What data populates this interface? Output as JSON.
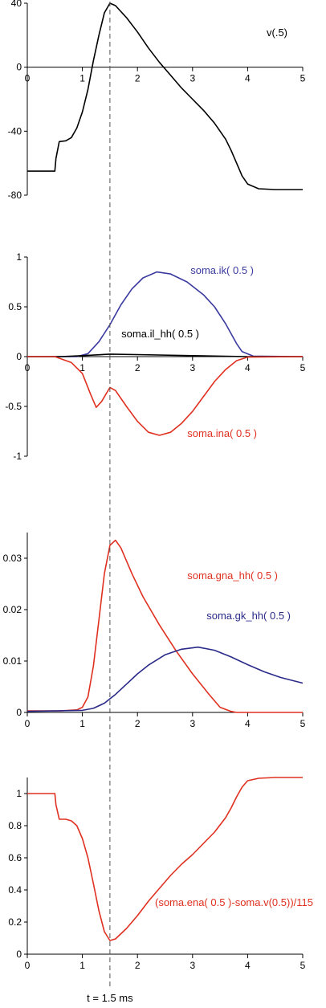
{
  "cursor_label": "t = 1.5 ms",
  "cursor_t": 1.5,
  "chart_data": [
    {
      "type": "line",
      "xlim": [
        0,
        5
      ],
      "ylim": [
        -80,
        40
      ],
      "x_ticks": [
        0,
        1,
        2,
        3,
        4,
        5
      ],
      "y_ticks": [
        40,
        0,
        -40,
        -80
      ],
      "series": [
        {
          "name": "v(.5)",
          "color": "#000000",
          "points": [
            [
              0,
              -65
            ],
            [
              0.5,
              -65
            ],
            [
              0.52,
              -57
            ],
            [
              0.58,
              -46.5
            ],
            [
              0.7,
              -46
            ],
            [
              0.8,
              -44
            ],
            [
              0.9,
              -38
            ],
            [
              1.0,
              -28
            ],
            [
              1.1,
              -14
            ],
            [
              1.2,
              4
            ],
            [
              1.3,
              20
            ],
            [
              1.4,
              34
            ],
            [
              1.5,
              40
            ],
            [
              1.6,
              38.5
            ],
            [
              1.8,
              31
            ],
            [
              2.0,
              22
            ],
            [
              2.2,
              12
            ],
            [
              2.4,
              3
            ],
            [
              2.6,
              -5
            ],
            [
              2.8,
              -13
            ],
            [
              3.0,
              -20
            ],
            [
              3.2,
              -27
            ],
            [
              3.4,
              -35
            ],
            [
              3.6,
              -45
            ],
            [
              3.7,
              -52
            ],
            [
              3.8,
              -60
            ],
            [
              3.9,
              -68
            ],
            [
              4.0,
              -73
            ],
            [
              4.2,
              -76
            ],
            [
              4.5,
              -76.5
            ],
            [
              5,
              -76.5
            ]
          ]
        }
      ]
    },
    {
      "type": "line",
      "xlim": [
        0,
        5
      ],
      "ylim": [
        -1,
        1
      ],
      "x_ticks": [
        0,
        1,
        2,
        3,
        4,
        5
      ],
      "y_ticks": [
        1,
        0.5,
        0,
        -0.5,
        -1
      ],
      "series": [
        {
          "name": "soma.ik( 0.5 )",
          "color": "#3a3aa0",
          "points": [
            [
              0,
              0
            ],
            [
              0.9,
              0
            ],
            [
              1.1,
              0.03
            ],
            [
              1.3,
              0.15
            ],
            [
              1.5,
              0.32
            ],
            [
              1.7,
              0.52
            ],
            [
              1.9,
              0.68
            ],
            [
              2.1,
              0.79
            ],
            [
              2.35,
              0.85
            ],
            [
              2.6,
              0.83
            ],
            [
              2.9,
              0.75
            ],
            [
              3.2,
              0.62
            ],
            [
              3.4,
              0.5
            ],
            [
              3.6,
              0.33
            ],
            [
              3.8,
              0.13
            ],
            [
              3.9,
              0.05
            ],
            [
              4.1,
              0.005
            ],
            [
              5,
              0
            ]
          ]
        },
        {
          "name": "soma.il_hh( 0.5 )",
          "color": "#000000",
          "points": [
            [
              0,
              0.0
            ],
            [
              0.6,
              0.0
            ],
            [
              1.0,
              0.01
            ],
            [
              1.5,
              0.025
            ],
            [
              2.0,
              0.02
            ],
            [
              3.0,
              0.01
            ],
            [
              4.0,
              0.0
            ],
            [
              5,
              0.0
            ]
          ]
        },
        {
          "name": "soma.ina( 0.5 )",
          "color": "#e03020",
          "points": [
            [
              0,
              0
            ],
            [
              0.5,
              0
            ],
            [
              0.6,
              -0.02
            ],
            [
              0.8,
              -0.06
            ],
            [
              1.0,
              -0.17
            ],
            [
              1.15,
              -0.38
            ],
            [
              1.25,
              -0.51
            ],
            [
              1.35,
              -0.45
            ],
            [
              1.5,
              -0.31
            ],
            [
              1.6,
              -0.34
            ],
            [
              1.8,
              -0.5
            ],
            [
              2.0,
              -0.65
            ],
            [
              2.2,
              -0.76
            ],
            [
              2.4,
              -0.79
            ],
            [
              2.6,
              -0.76
            ],
            [
              2.8,
              -0.67
            ],
            [
              3.0,
              -0.55
            ],
            [
              3.2,
              -0.4
            ],
            [
              3.4,
              -0.25
            ],
            [
              3.6,
              -0.13
            ],
            [
              3.8,
              -0.04
            ],
            [
              4.0,
              -0.005
            ],
            [
              5,
              0
            ]
          ]
        }
      ]
    },
    {
      "type": "line",
      "xlim": [
        0,
        5
      ],
      "ylim": [
        0,
        0.035
      ],
      "x_ticks": [
        0,
        1,
        2,
        3,
        4,
        5
      ],
      "y_ticks": [
        0.03,
        0.02,
        0.01,
        0
      ],
      "series": [
        {
          "name": "soma.gna_hh( 0.5 )",
          "color": "#e03020",
          "points": [
            [
              0,
              0.0003
            ],
            [
              0.6,
              0.0003
            ],
            [
              0.9,
              0.0005
            ],
            [
              1.0,
              0.001
            ],
            [
              1.1,
              0.003
            ],
            [
              1.2,
              0.009
            ],
            [
              1.3,
              0.018
            ],
            [
              1.4,
              0.027
            ],
            [
              1.5,
              0.0325
            ],
            [
              1.6,
              0.0335
            ],
            [
              1.7,
              0.032
            ],
            [
              1.9,
              0.027
            ],
            [
              2.1,
              0.0225
            ],
            [
              2.4,
              0.017
            ],
            [
              2.7,
              0.012
            ],
            [
              3.0,
              0.0075
            ],
            [
              3.3,
              0.0035
            ],
            [
              3.5,
              0.001
            ],
            [
              3.7,
              0.0002
            ],
            [
              3.8,
              0.0
            ],
            [
              5,
              0.0
            ]
          ]
        },
        {
          "name": "soma.gk_hh( 0.5 )",
          "color": "#2a2a8a",
          "points": [
            [
              0,
              0.0002
            ],
            [
              1.0,
              0.0004
            ],
            [
              1.2,
              0.0008
            ],
            [
              1.4,
              0.0018
            ],
            [
              1.6,
              0.0035
            ],
            [
              1.8,
              0.0055
            ],
            [
              2.0,
              0.0075
            ],
            [
              2.2,
              0.0092
            ],
            [
              2.5,
              0.0112
            ],
            [
              2.8,
              0.0123
            ],
            [
              3.1,
              0.0127
            ],
            [
              3.4,
              0.0121
            ],
            [
              3.7,
              0.0108
            ],
            [
              4.0,
              0.0093
            ],
            [
              4.3,
              0.0079
            ],
            [
              4.6,
              0.0068
            ],
            [
              5,
              0.0057
            ]
          ]
        }
      ]
    },
    {
      "type": "line",
      "xlim": [
        0,
        5
      ],
      "ylim": [
        0,
        1.1
      ],
      "x_ticks": [
        0,
        1,
        2,
        3,
        4,
        5
      ],
      "y_ticks": [
        1,
        0.8,
        0.6,
        0.4,
        0.2,
        0
      ],
      "series": [
        {
          "name": "(soma.ena( 0.5 )-soma.v(0.5))/115",
          "color": "#e03020",
          "points": [
            [
              0,
              1.0
            ],
            [
              0.5,
              1.0
            ],
            [
              0.52,
              0.93
            ],
            [
              0.58,
              0.84
            ],
            [
              0.7,
              0.84
            ],
            [
              0.8,
              0.83
            ],
            [
              0.9,
              0.8
            ],
            [
              1.0,
              0.72
            ],
            [
              1.1,
              0.6
            ],
            [
              1.2,
              0.44
            ],
            [
              1.3,
              0.27
            ],
            [
              1.4,
              0.14
            ],
            [
              1.5,
              0.085
            ],
            [
              1.6,
              0.095
            ],
            [
              1.8,
              0.16
            ],
            [
              2.0,
              0.24
            ],
            [
              2.2,
              0.33
            ],
            [
              2.4,
              0.41
            ],
            [
              2.6,
              0.49
            ],
            [
              2.8,
              0.56
            ],
            [
              3.0,
              0.62
            ],
            [
              3.2,
              0.69
            ],
            [
              3.4,
              0.76
            ],
            [
              3.6,
              0.85
            ],
            [
              3.7,
              0.91
            ],
            [
              3.8,
              0.98
            ],
            [
              3.9,
              1.04
            ],
            [
              4.0,
              1.08
            ],
            [
              4.2,
              1.095
            ],
            [
              4.5,
              1.1
            ],
            [
              5,
              1.1
            ]
          ]
        }
      ]
    }
  ]
}
